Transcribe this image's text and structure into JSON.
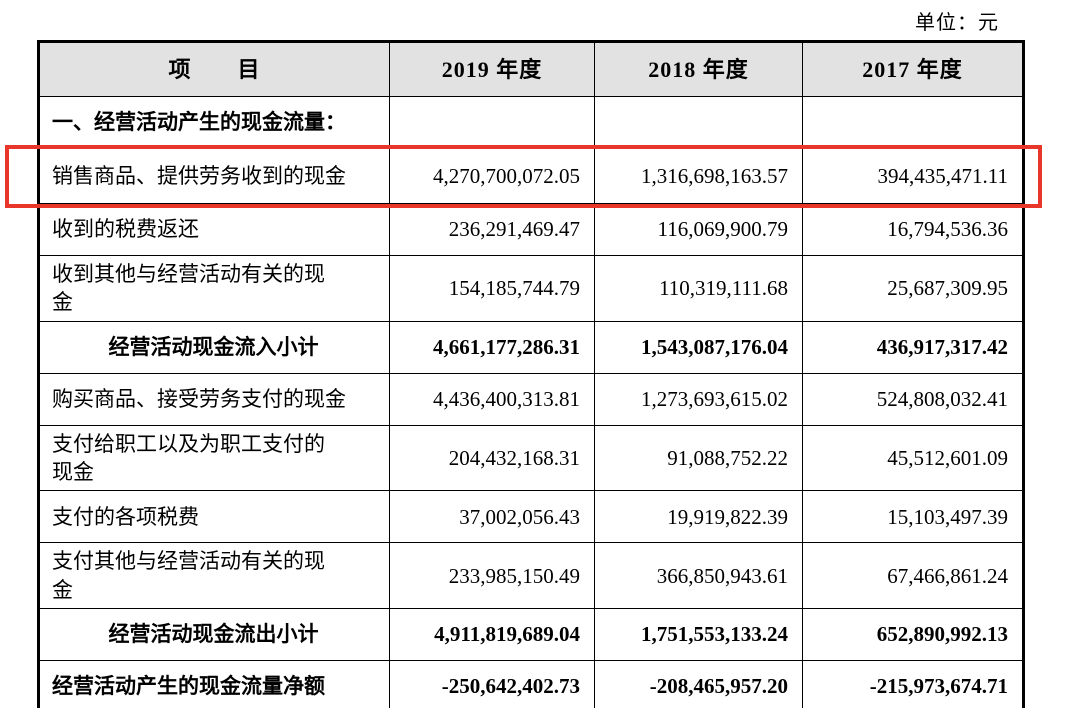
{
  "page": {
    "unit_label": "单位：元"
  },
  "table": {
    "highlight_color": "#e8362a",
    "header_bg": "#e2e2e2",
    "columns": [
      "项　　目",
      "2019 年度",
      "2018 年度",
      "2017 年度"
    ],
    "rows": [
      {
        "label": "一、经营活动产生的现金流量：",
        "values": [
          "",
          "",
          ""
        ],
        "section": true,
        "bold": true
      },
      {
        "label": "销售商品、提供劳务收到的现金",
        "values": [
          "4,270,700,072.05",
          "1,316,698,163.57",
          "394,435,471.11"
        ],
        "highlighted": true
      },
      {
        "label": "收到的税费返还",
        "values": [
          "236,291,469.47",
          "116,069,900.79",
          "16,794,536.36"
        ]
      },
      {
        "label": "收到其他与经营活动有关的现\n金",
        "values": [
          "154,185,744.79",
          "110,319,111.68",
          "25,687,309.95"
        ]
      },
      {
        "label": "经营活动现金流入小计",
        "values": [
          "4,661,177,286.31",
          "1,543,087,176.04",
          "436,917,317.42"
        ],
        "bold": true,
        "align": "center"
      },
      {
        "label": "购买商品、接受劳务支付的现金",
        "values": [
          "4,436,400,313.81",
          "1,273,693,615.02",
          "524,808,032.41"
        ]
      },
      {
        "label": "支付给职工以及为职工支付的\n现金",
        "values": [
          "204,432,168.31",
          "91,088,752.22",
          "45,512,601.09"
        ]
      },
      {
        "label": "支付的各项税费",
        "values": [
          "37,002,056.43",
          "19,919,822.39",
          "15,103,497.39"
        ]
      },
      {
        "label": "支付其他与经营活动有关的现\n金",
        "values": [
          "233,985,150.49",
          "366,850,943.61",
          "67,466,861.24"
        ]
      },
      {
        "label": "经营活动现金流出小计",
        "values": [
          "4,911,819,689.04",
          "1,751,553,133.24",
          "652,890,992.13"
        ],
        "bold": true,
        "align": "center"
      },
      {
        "label": "经营活动产生的现金流量净额",
        "values": [
          "-250,642,402.73",
          "-208,465,957.20",
          "-215,973,674.71"
        ],
        "bold": true
      }
    ]
  }
}
